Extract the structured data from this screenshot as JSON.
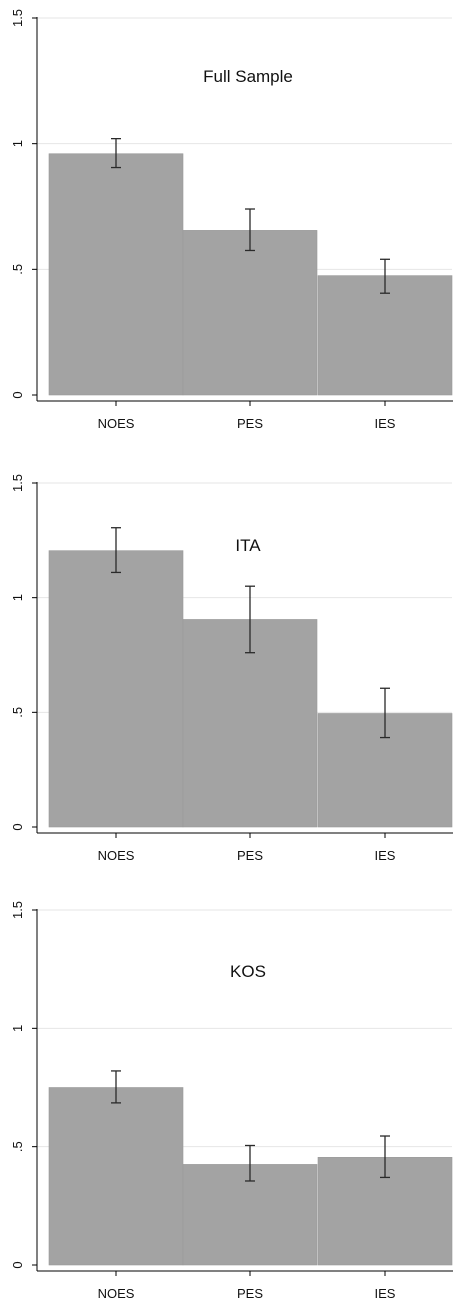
{
  "chart_data": [
    {
      "type": "bar",
      "title": "Full Sample",
      "categories": [
        "NOES",
        "PES",
        "IES"
      ],
      "values": [
        0.96,
        0.655,
        0.475
      ],
      "error_low": [
        0.905,
        0.575,
        0.405
      ],
      "error_high": [
        1.02,
        0.74,
        0.54
      ],
      "ylim": [
        0,
        1.5
      ],
      "y_ticks": [
        0,
        0.5,
        1,
        1.5
      ],
      "y_tick_labels": [
        "0",
        ".5",
        "1",
        "1.5"
      ],
      "grid": true,
      "colors": {
        "bar": "#a3a3a3",
        "error_bar": "#2a2a2a",
        "grid": "#e6e6e6"
      }
    },
    {
      "type": "bar",
      "title": "ITA",
      "categories": [
        "NOES",
        "PES",
        "IES"
      ],
      "values": [
        1.205,
        0.905,
        0.495
      ],
      "error_low": [
        1.11,
        0.76,
        0.39
      ],
      "error_high": [
        1.305,
        1.05,
        0.605
      ],
      "ylim": [
        0,
        1.5
      ],
      "y_ticks": [
        0,
        0.5,
        1,
        1.5
      ],
      "y_tick_labels": [
        "0",
        ".5",
        "1",
        "1.5"
      ],
      "grid": true,
      "colors": {
        "bar": "#a3a3a3",
        "error_bar": "#2a2a2a",
        "grid": "#e6e6e6"
      }
    },
    {
      "type": "bar",
      "title": "KOS",
      "categories": [
        "NOES",
        "PES",
        "IES"
      ],
      "values": [
        0.75,
        0.425,
        0.455
      ],
      "error_low": [
        0.685,
        0.355,
        0.37
      ],
      "error_high": [
        0.82,
        0.505,
        0.545
      ],
      "ylim": [
        0,
        1.5
      ],
      "y_ticks": [
        0,
        0.5,
        1,
        1.5
      ],
      "y_tick_labels": [
        "0",
        ".5",
        "1",
        "1.5"
      ],
      "grid": true,
      "colors": {
        "bar": "#a3a3a3",
        "error_bar": "#2a2a2a",
        "grid": "#e6e6e6"
      }
    }
  ]
}
